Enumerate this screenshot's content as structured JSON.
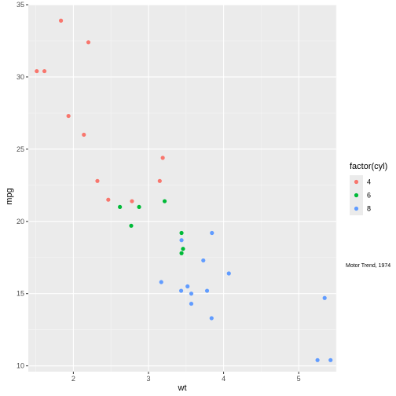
{
  "colors": {
    "panel_bg": "#ebebeb",
    "grid_major": "#ffffff",
    "grid_minor": "#f5f5f5",
    "cyl4": "#f8766d",
    "cyl6": "#00ba38",
    "cyl8": "#619cff"
  },
  "chart_data": {
    "type": "scatter",
    "title": "",
    "xlabel": "wt",
    "ylabel": "mpg",
    "xlim": [
      1.4,
      5.5
    ],
    "ylim": [
      9.6,
      35
    ],
    "x_ticks": [
      2,
      3,
      4,
      5
    ],
    "y_ticks": [
      10,
      15,
      20,
      25,
      30,
      35
    ],
    "grid": true,
    "legend": {
      "title": "factor(cyl)",
      "position": "right",
      "entries": [
        "4",
        "6",
        "8"
      ]
    },
    "annotation": "Motor Trend, 1974",
    "series": [
      {
        "name": "4",
        "color": "#f8766d",
        "points": [
          [
            1.513,
            30.4
          ],
          [
            1.615,
            30.4
          ],
          [
            1.835,
            33.9
          ],
          [
            1.935,
            27.3
          ],
          [
            2.14,
            26.0
          ],
          [
            2.2,
            32.4
          ],
          [
            2.32,
            22.8
          ],
          [
            2.465,
            21.5
          ],
          [
            2.78,
            21.4
          ],
          [
            3.15,
            22.8
          ],
          [
            3.19,
            24.4
          ]
        ]
      },
      {
        "name": "6",
        "color": "#00ba38",
        "points": [
          [
            2.62,
            21.0
          ],
          [
            2.77,
            19.7
          ],
          [
            2.875,
            21.0
          ],
          [
            3.215,
            21.4
          ],
          [
            3.44,
            19.2
          ],
          [
            3.44,
            17.8
          ],
          [
            3.46,
            18.1
          ]
        ]
      },
      {
        "name": "8",
        "color": "#619cff",
        "points": [
          [
            3.17,
            15.8
          ],
          [
            3.435,
            15.2
          ],
          [
            3.44,
            18.7
          ],
          [
            3.52,
            15.5
          ],
          [
            3.57,
            15.0
          ],
          [
            3.57,
            14.3
          ],
          [
            3.73,
            17.3
          ],
          [
            3.78,
            15.2
          ],
          [
            3.84,
            13.3
          ],
          [
            3.845,
            19.2
          ],
          [
            4.07,
            16.4
          ],
          [
            5.25,
            10.4
          ],
          [
            5.345,
            14.7
          ],
          [
            5.424,
            10.4
          ]
        ]
      }
    ]
  }
}
